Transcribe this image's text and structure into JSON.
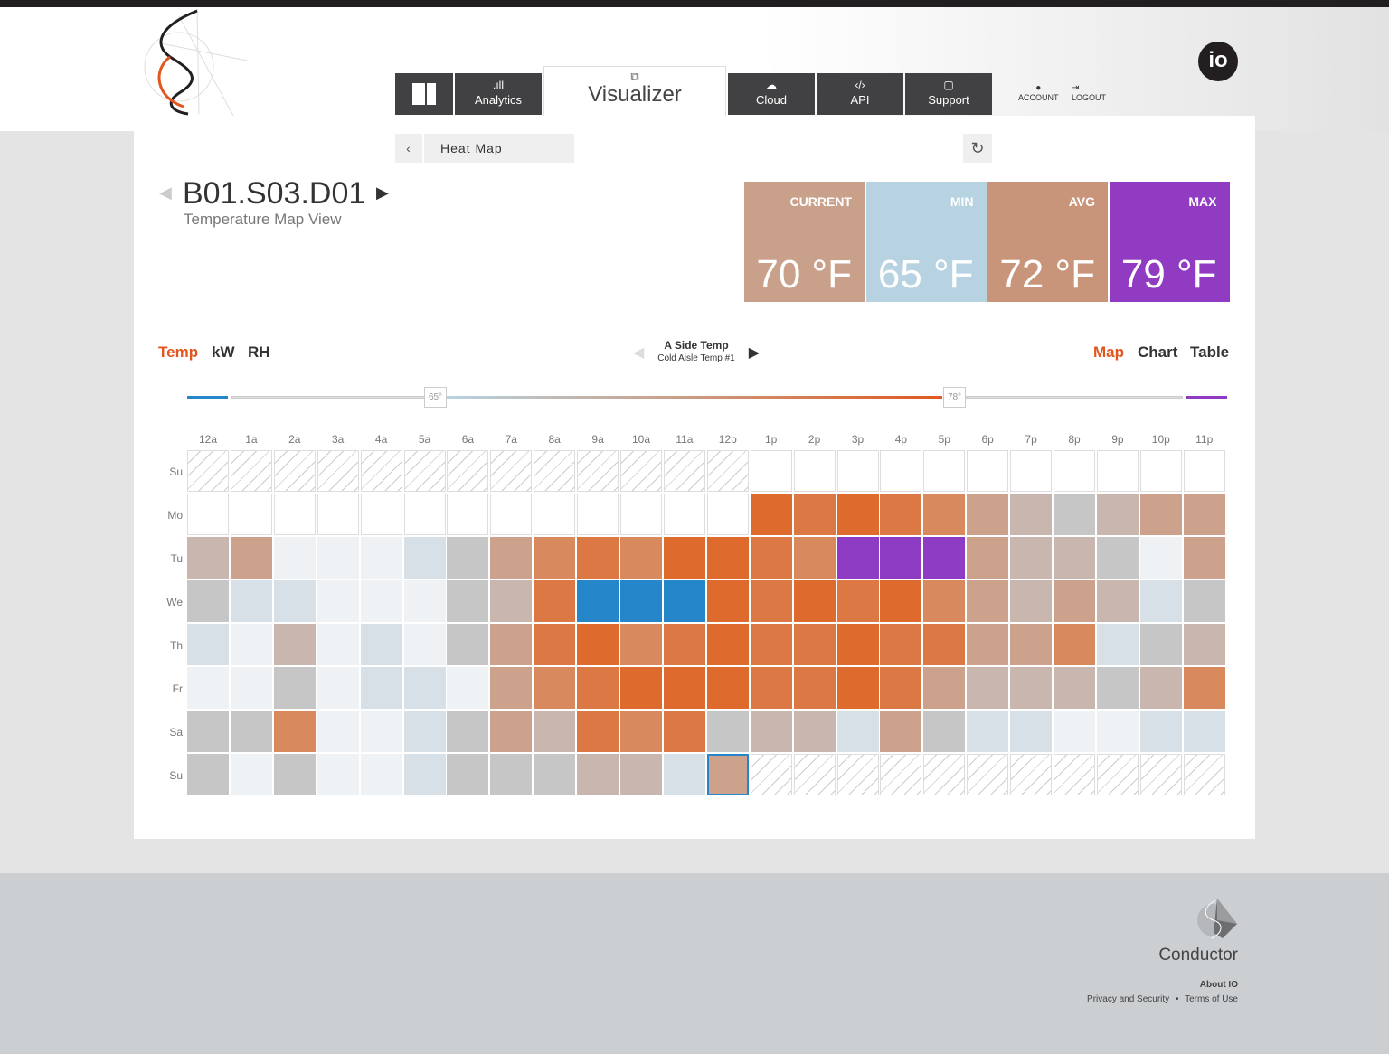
{
  "nav": {
    "dashboard_icon": "dashboard-grid-icon",
    "items": [
      {
        "label": "Analytics",
        "icon": "bar-chart-icon"
      },
      {
        "label": "Visualizer",
        "icon": "windows-icon"
      },
      {
        "label": "Cloud",
        "icon": "cloud-icon"
      },
      {
        "label": "API",
        "icon": "code-icon"
      },
      {
        "label": "Support",
        "icon": "speech-bubble-icon"
      }
    ],
    "account": "ACCOUNT",
    "logout": "LOGOUT",
    "brand": "io"
  },
  "breadcrumb": {
    "label": "Heat Map"
  },
  "device": {
    "title": "B01.S03.D01",
    "subtitle": "Temperature Map View"
  },
  "stats": [
    {
      "label": "CURRENT",
      "value": "70 °F",
      "color": "#c9a08a"
    },
    {
      "label": "MIN",
      "value": "65 °F",
      "color": "#b7d3e1"
    },
    {
      "label": "AVG",
      "value": "72 °F",
      "color": "#c9957a"
    },
    {
      "label": "MAX",
      "value": "79 °F",
      "color": "#913ac2"
    }
  ],
  "metric_tabs": [
    "Temp",
    "kW",
    "RH"
  ],
  "view_tabs": [
    "Map",
    "Chart",
    "Table"
  ],
  "sensor": {
    "name": "A Side Temp",
    "detail": "Cold Aisle Temp #1"
  },
  "scale": {
    "low": "65°",
    "high": "78°"
  },
  "heatmap": {
    "hours": [
      "12a",
      "1a",
      "2a",
      "3a",
      "4a",
      "5a",
      "6a",
      "7a",
      "8a",
      "9a",
      "10a",
      "11a",
      "12p",
      "1p",
      "2p",
      "3p",
      "4p",
      "5p",
      "6p",
      "7p",
      "8p",
      "9p",
      "10p",
      "11p"
    ],
    "days": [
      "Su",
      "Mo",
      "Tu",
      "We",
      "Th",
      "Fr",
      "Sa",
      "Su"
    ],
    "legend": {
      "H": "no data",
      "W": "empty",
      "a": "#eef2f4",
      "b": "#d6e0e6",
      "g": "#c6c6c6",
      "t": "#c9b7af",
      "p": "#cda28d",
      "o": "#d8895e",
      "O": "#dc7844",
      "D": "#df6a2e",
      "B": "#2587c9",
      "V": "#8e3cc3"
    },
    "rows": [
      "HHHHHHHHHHHHHWWWWWWWWWWW",
      "WWWWWWWWWWWWWDODOoptgtpp",
      "tpaaabgpoOoDDOoVVVpttgap",
      "gbbaaagtOBBBDODODoptptbg",
      "batabagpODoODOODOOppobgt",
      "aagabbapoODDDOODOptttgto",
      "ggoaabgptOoOgttbpgbbaabb",
      "gagaabgggttbpHHHHHHHHHHH"
    ],
    "selected": "Su 12p"
  },
  "footer": {
    "brand": "Conductor",
    "about": "About IO",
    "privacy": "Privacy and Security",
    "sep": "•",
    "terms": "Terms of Use"
  }
}
